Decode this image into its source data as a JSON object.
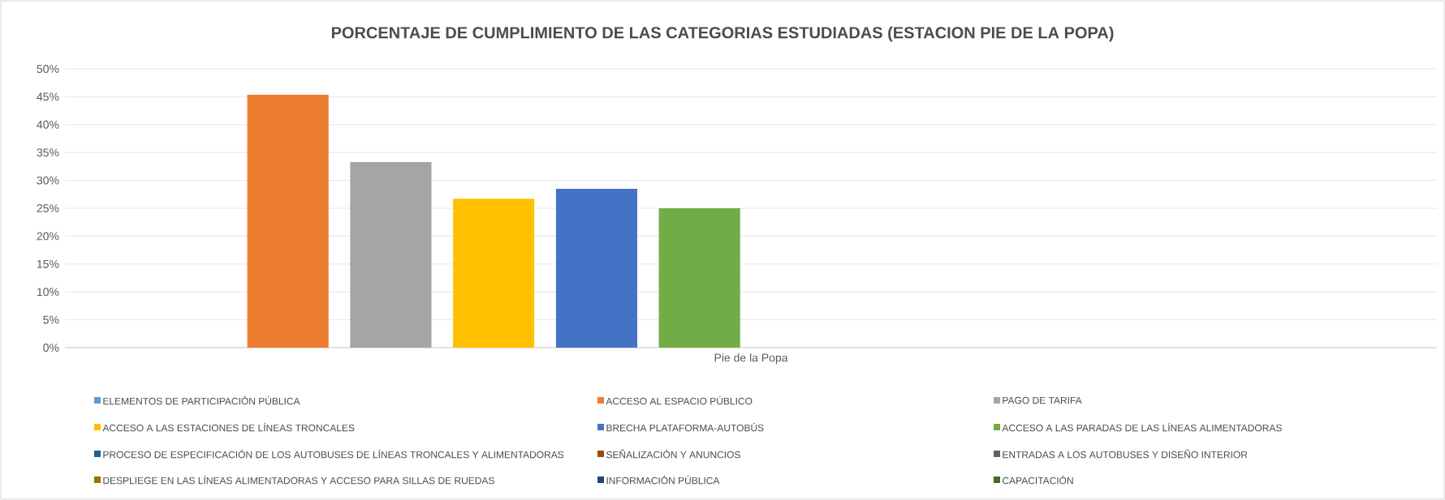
{
  "chart_data": {
    "type": "bar",
    "title": "PORCENTAJE DE CUMPLIMIENTO  DE LAS CATEGORIAS ESTUDIADAS  (ESTACION  PIE DE LA POPA)",
    "categories": [
      "Pie de la Popa"
    ],
    "series": [
      {
        "name": "ELEMENTOS DE PARTICIPACIÓN PÚBLICA",
        "color": "#5b9bd5",
        "values": [
          null
        ]
      },
      {
        "name": "ACCESO AL ESPACIO PÚBLICO",
        "color": "#ed7d31",
        "values": [
          45.4
        ]
      },
      {
        "name": "PAGO DE TARIFA",
        "color": "#a5a5a5",
        "values": [
          33.3
        ]
      },
      {
        "name": "ACCESO A LAS ESTACIONES DE LÍNEAS TRONCALES",
        "color": "#ffc000",
        "values": [
          26.7
        ]
      },
      {
        "name": "BRECHA PLATAFORMA-AUTOBÚS",
        "color": "#4472c4",
        "values": [
          28.5
        ]
      },
      {
        "name": "ACCESO A LAS PARADAS DE LAS LÍNEAS ALIMENTADORAS",
        "color": "#70ad47",
        "values": [
          25.0
        ]
      },
      {
        "name": "PROCESO DE ESPECIFICACIÓN DE LOS AUTOBUSES DE LÍNEAS TRONCALES Y ALIMENTADORAS",
        "color": "#255e91",
        "values": [
          null
        ]
      },
      {
        "name": "SEÑALIZACIÓN Y ANUNCIOS",
        "color": "#9e480e",
        "values": [
          null
        ]
      },
      {
        "name": "ENTRADAS A LOS AUTOBUSES Y DISEÑO INTERIOR",
        "color": "#636363",
        "values": [
          null
        ]
      },
      {
        "name": "DESPLIEGE EN LAS LÍNEAS ALIMENTADORAS Y ACCESO PARA SILLAS DE RUEDAS",
        "color": "#997300",
        "values": [
          null
        ]
      },
      {
        "name": "INFORMACIÓN PÚBLICA",
        "color": "#264478",
        "values": [
          null
        ]
      },
      {
        "name": "CAPACITACIÓN",
        "color": "#43682b",
        "values": [
          null
        ]
      }
    ],
    "ylim": [
      0,
      50
    ],
    "yticks": [
      {
        "value": 0,
        "label": "0%"
      },
      {
        "value": 5,
        "label": "5%"
      },
      {
        "value": 10,
        "label": "10%"
      },
      {
        "value": 15,
        "label": "15%"
      },
      {
        "value": 20,
        "label": "20%"
      },
      {
        "value": 25,
        "label": "25%"
      },
      {
        "value": 30,
        "label": "30%"
      },
      {
        "value": 35,
        "label": "35%"
      },
      {
        "value": 40,
        "label": "40%"
      },
      {
        "value": 45,
        "label": "45%"
      },
      {
        "value": 50,
        "label": "50%"
      }
    ],
    "grid": "y",
    "legend": "bottom"
  }
}
